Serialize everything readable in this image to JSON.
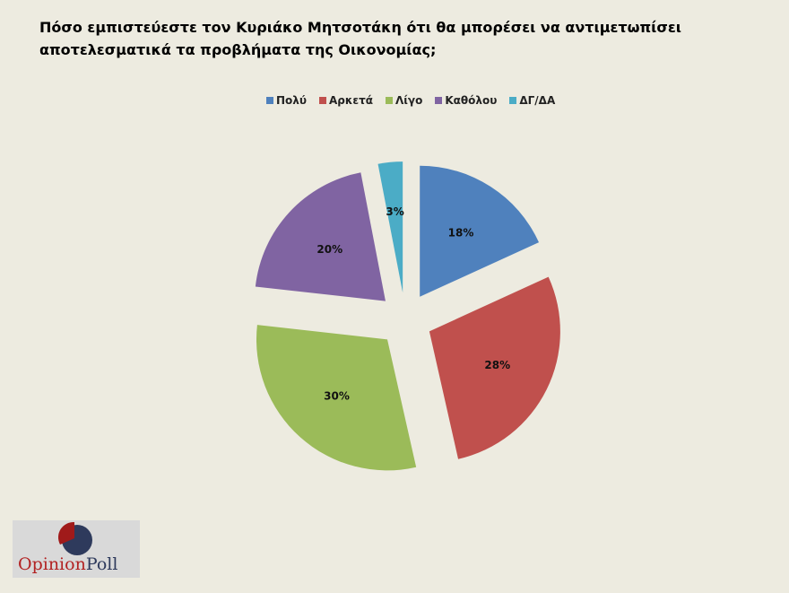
{
  "title": "Πόσο εμπιστεύεστε τον Κυριάκο Μητσοτάκη ότι θα μπορέσει να αντιμετωπίσει αποτελεσματικά τα προβλήματα της Οικονομίας;",
  "chart_data": {
    "type": "pie",
    "title": "Πόσο εμπιστεύεστε τον Κυριάκο Μητσοτάκη ότι θα μπορέσει να αντιμετωπίσει αποτελεσματικά τα προβλήματα της Οικονομίας;",
    "categories": [
      "Πολύ",
      "Αρκετά",
      "Λίγο",
      "Καθόλου",
      "ΔΓ/ΔΑ"
    ],
    "values": [
      18,
      28,
      30,
      20,
      3
    ],
    "labels": [
      "18%",
      "28%",
      "30%",
      "20%",
      "3%"
    ],
    "colors": [
      "#4f81bd",
      "#c0504d",
      "#9bbb59",
      "#8064a2",
      "#4bacc6"
    ],
    "exploded": true,
    "legend": "top"
  },
  "logo": {
    "text_part1": "Opinion",
    "text_part2": "Poll"
  }
}
